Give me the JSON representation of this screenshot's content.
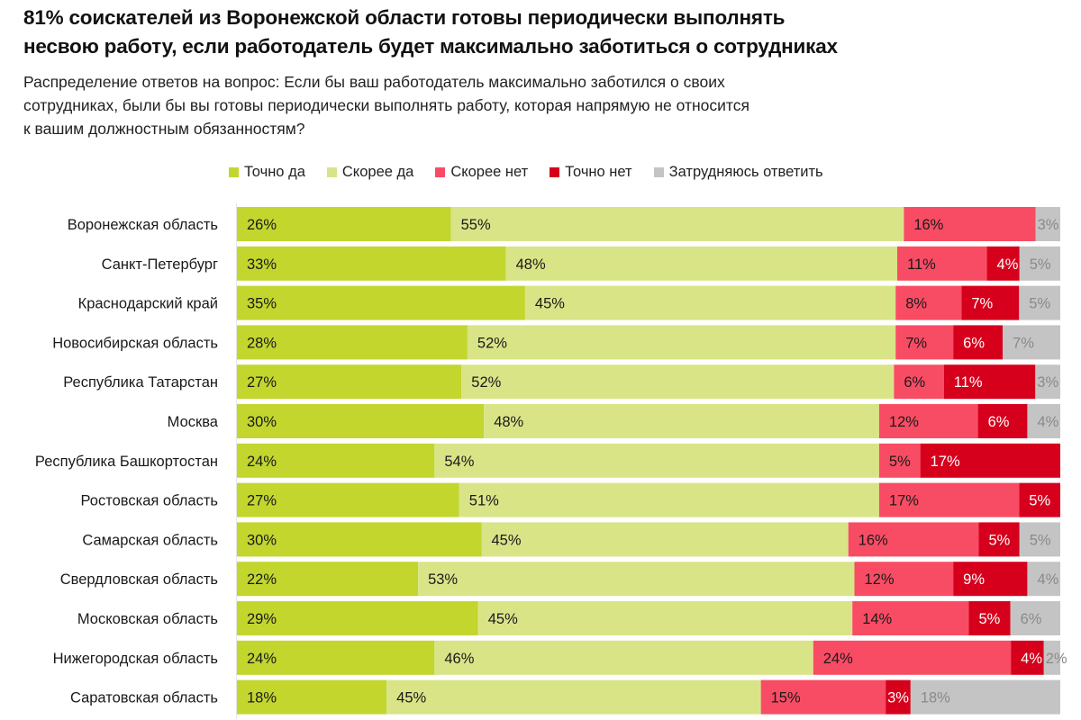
{
  "header": {
    "title_line1": "81% соискателей из Воронежской области готовы периодически выполнять",
    "title_line2": "несвою работу, если работодатель будет максимально заботиться о сотрудниках",
    "subtitle_line1": "Распределение ответов на вопрос: Если бы ваш работодатель максимально заботился о своих",
    "subtitle_line2": "сотрудниках, были бы вы готовы периодически выполнять работу, которая напрямую не относится",
    "subtitle_line3": "к вашим должностным обязанностям?"
  },
  "chart_data": {
    "type": "bar",
    "orientation": "horizontal",
    "stacked": true,
    "normalized": true,
    "title": "81% соискателей из Воронежской области готовы периодически выполнять несвою работу, если работодатель будет максимально заботиться о сотрудниках",
    "subtitle": "Распределение ответов на вопрос: Если бы ваш работодатель максимально заботился о своих сотрудниках, были бы вы готовы периодически выполнять работу, которая напрямую не относится к вашим должностным обязанностям?",
    "xlabel": "",
    "ylabel": "",
    "legend_position": "top",
    "grid": false,
    "value_suffix": "%",
    "categories": [
      "Воронежская область",
      "Санкт-Петербург",
      "Краснодарский край",
      "Новосибирская область",
      "Республика Татарстан",
      "Москва",
      "Республика Башкортостан",
      "Ростовская область",
      "Самарская область",
      "Свердловская область",
      "Московская область",
      "Нижегородская область",
      "Саратовская область"
    ],
    "series": [
      {
        "name": "Точно да",
        "color": "#c2d62e",
        "label_color": "#1a1a1a",
        "values": [
          26,
          33,
          35,
          28,
          27,
          30,
          24,
          27,
          30,
          22,
          29,
          24,
          18
        ]
      },
      {
        "name": "Скорее да",
        "color": "#d9e487",
        "label_color": "#1a1a1a",
        "values": [
          55,
          48,
          45,
          52,
          52,
          48,
          54,
          51,
          45,
          53,
          45,
          46,
          45
        ]
      },
      {
        "name": "Скорее нет",
        "color": "#f84c64",
        "label_color": "#1a1a1a",
        "values": [
          16,
          11,
          8,
          7,
          6,
          12,
          5,
          17,
          16,
          12,
          14,
          24,
          15
        ]
      },
      {
        "name": "Точно нет",
        "color": "#d6001c",
        "label_color": "#ffffff",
        "values": [
          0,
          4,
          7,
          6,
          11,
          6,
          17,
          5,
          5,
          9,
          5,
          4,
          3
        ]
      },
      {
        "name": "Затрудняюсь ответить",
        "color": "#c4c4c4",
        "label_color": "#8a8a8a",
        "values": [
          3,
          5,
          5,
          7,
          3,
          4,
          0,
          0,
          5,
          4,
          6,
          2,
          18
        ]
      }
    ]
  }
}
